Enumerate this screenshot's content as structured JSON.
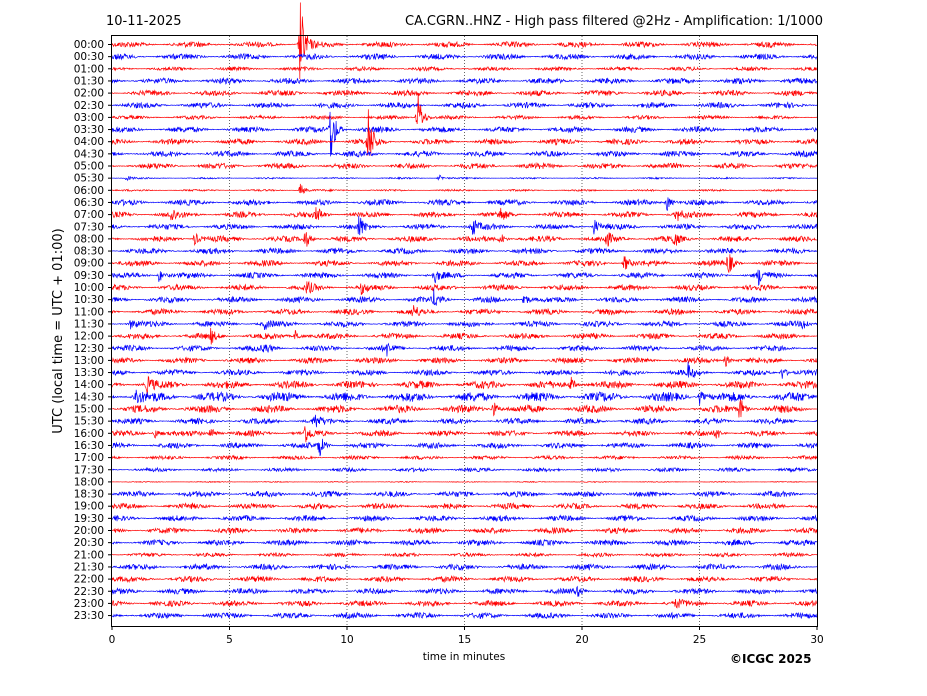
{
  "header": {
    "date": "10-11-2025",
    "title": "CA.CGRN..HNZ - High pass filtered @2Hz - Amplification: 1/1000"
  },
  "footer": {
    "copyright": "©ICGC 2025"
  },
  "chart_data": {
    "type": "line",
    "title": "CA.CGRN..HNZ - High pass filtered @2Hz - Amplification: 1/1000",
    "xlabel": "time in minutes",
    "ylabel": "UTC (local time = UTC + 01:00)",
    "xlim": [
      0,
      30
    ],
    "xticks": [
      0,
      5,
      10,
      15,
      20,
      25,
      30
    ],
    "grid": "vertical dotted at x ticks",
    "rows": [
      "00:00",
      "00:30",
      "01:00",
      "01:30",
      "02:00",
      "02:30",
      "03:00",
      "03:30",
      "04:00",
      "04:30",
      "05:00",
      "05:30",
      "06:00",
      "06:30",
      "07:00",
      "07:30",
      "08:00",
      "08:30",
      "09:00",
      "09:30",
      "10:00",
      "10:30",
      "11:00",
      "11:30",
      "12:00",
      "12:30",
      "13:00",
      "13:30",
      "14:00",
      "14:30",
      "15:00",
      "15:30",
      "16:00",
      "16:30",
      "17:00",
      "17:30",
      "18:00",
      "18:30",
      "19:00",
      "19:30",
      "20:00",
      "20:30",
      "21:00",
      "21:30",
      "22:00",
      "22:30",
      "23:00",
      "23:30"
    ],
    "colors": [
      "#ff0000",
      "#0000ff"
    ],
    "noise_level": [
      3,
      3,
      2,
      3,
      3,
      3,
      2,
      3,
      3,
      3,
      3,
      0.8,
      1,
      3,
      3,
      3,
      3,
      3,
      3,
      3,
      3,
      3,
      3,
      3,
      3,
      3,
      3,
      3,
      4,
      5,
      4,
      3,
      3,
      3,
      2,
      2,
      0.5,
      3,
      3,
      3,
      3,
      3,
      2,
      3,
      3,
      3,
      3,
      3
    ],
    "events": [
      {
        "row": "00:00",
        "t": 8.0,
        "amp": 50
      },
      {
        "row": "03:00",
        "t": 13.0,
        "amp": 30
      },
      {
        "row": "03:30",
        "t": 9.3,
        "amp": 40
      },
      {
        "row": "04:00",
        "t": 10.9,
        "amp": 35
      },
      {
        "row": "05:30",
        "t": 13.9,
        "amp": 4
      },
      {
        "row": "05:30",
        "t": 0.6,
        "amp": 3
      },
      {
        "row": "06:00",
        "t": 8.0,
        "amp": 8
      },
      {
        "row": "06:30",
        "t": 23.6,
        "amp": 10
      },
      {
        "row": "07:00",
        "t": 2.5,
        "amp": 8
      },
      {
        "row": "07:00",
        "t": 8.7,
        "amp": 10
      },
      {
        "row": "07:00",
        "t": 16.5,
        "amp": 7
      },
      {
        "row": "07:00",
        "t": 24.0,
        "amp": 8
      },
      {
        "row": "07:30",
        "t": 10.5,
        "amp": 12
      },
      {
        "row": "07:30",
        "t": 15.3,
        "amp": 12
      },
      {
        "row": "07:30",
        "t": 20.5,
        "amp": 9
      },
      {
        "row": "08:00",
        "t": 3.5,
        "amp": 8
      },
      {
        "row": "08:00",
        "t": 8.2,
        "amp": 12
      },
      {
        "row": "08:00",
        "t": 16.5,
        "amp": 8
      },
      {
        "row": "08:00",
        "t": 21.0,
        "amp": 9
      },
      {
        "row": "08:00",
        "t": 23.9,
        "amp": 8
      },
      {
        "row": "09:00",
        "t": 21.8,
        "amp": 10
      },
      {
        "row": "09:00",
        "t": 26.2,
        "amp": 14
      },
      {
        "row": "09:30",
        "t": 2.0,
        "amp": 8
      },
      {
        "row": "09:30",
        "t": 13.7,
        "amp": 8
      },
      {
        "row": "09:30",
        "t": 27.5,
        "amp": 9
      },
      {
        "row": "10:00",
        "t": 8.3,
        "amp": 7
      },
      {
        "row": "10:00",
        "t": 10.6,
        "amp": 6
      },
      {
        "row": "10:30",
        "t": 13.7,
        "amp": 10
      },
      {
        "row": "10:30",
        "t": 17.5,
        "amp": 10
      },
      {
        "row": "11:00",
        "t": 12.8,
        "amp": 7
      },
      {
        "row": "11:30",
        "t": 0.8,
        "amp": 6
      },
      {
        "row": "11:30",
        "t": 6.5,
        "amp": 5
      },
      {
        "row": "11:30",
        "t": 29.4,
        "amp": 6
      },
      {
        "row": "12:00",
        "t": 4.2,
        "amp": 7
      },
      {
        "row": "12:00",
        "t": 7.8,
        "amp": 7
      },
      {
        "row": "12:30",
        "t": 6.5,
        "amp": 6
      },
      {
        "row": "12:30",
        "t": 11.7,
        "amp": 6
      },
      {
        "row": "13:00",
        "t": 26.1,
        "amp": 7
      },
      {
        "row": "13:30",
        "t": 24.5,
        "amp": 9
      },
      {
        "row": "13:30",
        "t": 28.5,
        "amp": 8
      },
      {
        "row": "14:00",
        "t": 1.5,
        "amp": 10
      },
      {
        "row": "14:00",
        "t": 19.5,
        "amp": 9
      },
      {
        "row": "14:30",
        "t": 1.0,
        "amp": 10
      },
      {
        "row": "14:30",
        "t": 25.0,
        "amp": 8
      },
      {
        "row": "15:00",
        "t": 16.2,
        "amp": 10
      },
      {
        "row": "15:00",
        "t": 26.7,
        "amp": 14
      },
      {
        "row": "15:30",
        "t": 8.6,
        "amp": 9
      },
      {
        "row": "16:00",
        "t": 1.8,
        "amp": 7
      },
      {
        "row": "16:00",
        "t": 4.2,
        "amp": 9
      },
      {
        "row": "16:00",
        "t": 8.2,
        "amp": 10
      },
      {
        "row": "16:00",
        "t": 25.7,
        "amp": 7
      },
      {
        "row": "16:30",
        "t": 8.8,
        "amp": 14
      },
      {
        "row": "22:30",
        "t": 19.8,
        "amp": 5
      },
      {
        "row": "23:00",
        "t": 24.0,
        "amp": 5
      }
    ]
  }
}
